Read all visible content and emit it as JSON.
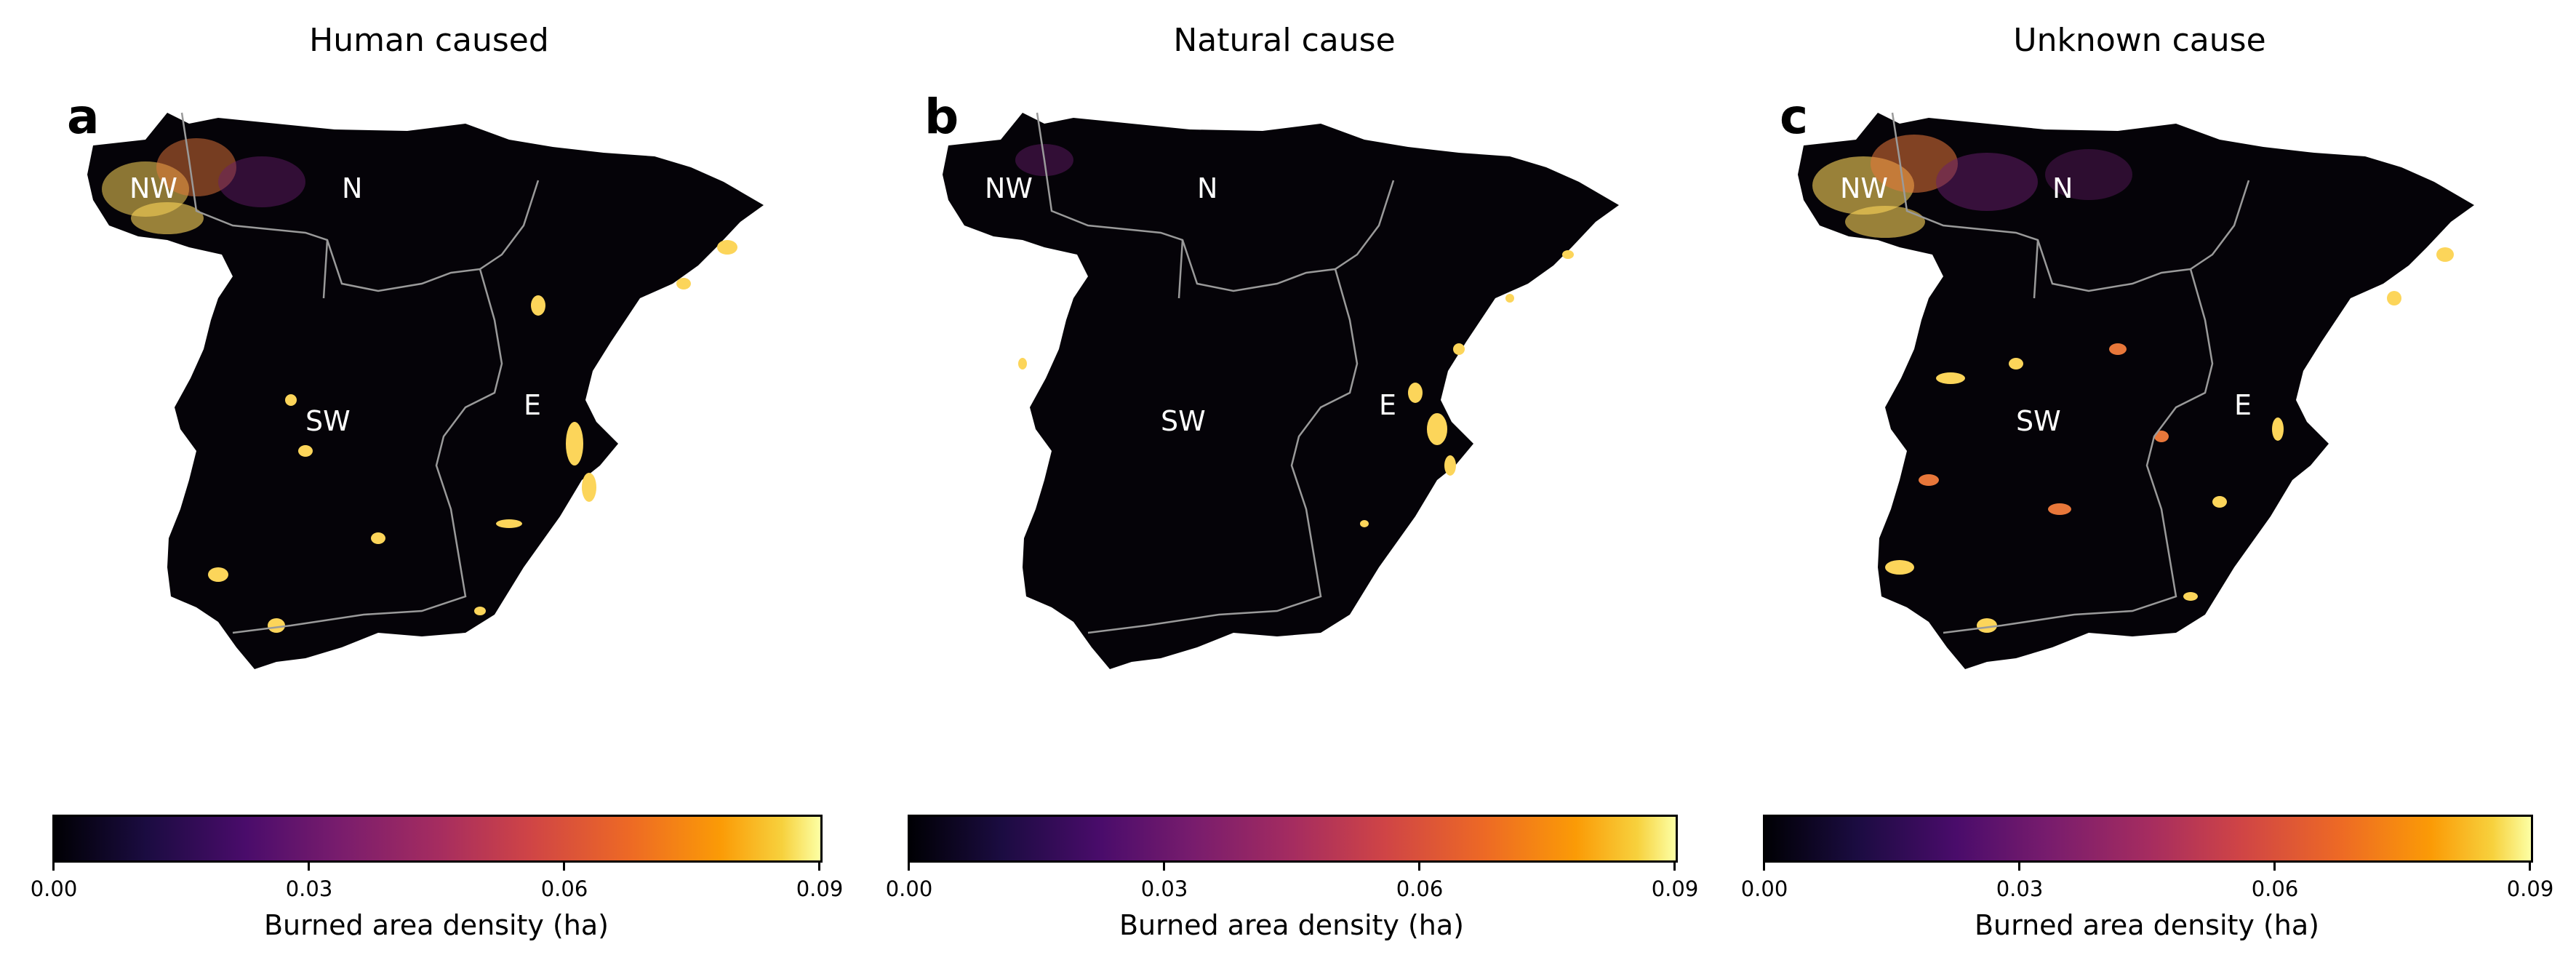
{
  "panels": [
    {
      "letter": "a",
      "title": "Human caused",
      "regions": [
        "NW",
        "N",
        "SW",
        "E"
      ],
      "colorbar": {
        "label": "Burned area density (ha)",
        "ticks": [
          "0.00",
          "0.03",
          "0.06",
          "0.09"
        ]
      }
    },
    {
      "letter": "b",
      "title": "Natural cause",
      "regions": [
        "NW",
        "N",
        "SW",
        "E"
      ],
      "colorbar": {
        "label": "Burned area density (ha)",
        "ticks": [
          "0.00",
          "0.03",
          "0.06",
          "0.09"
        ]
      }
    },
    {
      "letter": "c",
      "title": "Unknown cause",
      "regions": [
        "NW",
        "N",
        "SW",
        "E"
      ],
      "colorbar": {
        "label": "Burned area density (ha)",
        "ticks": [
          "0.00",
          "0.03",
          "0.06",
          "0.09"
        ]
      }
    }
  ],
  "colors": {
    "land": "#050308",
    "region_border": "#9a9a9a",
    "colormap": "inferno",
    "hotspot_high": "#fcd55a",
    "hotspot_mid": "#e8773a",
    "hotspot_low": "#6a1d6e"
  }
}
